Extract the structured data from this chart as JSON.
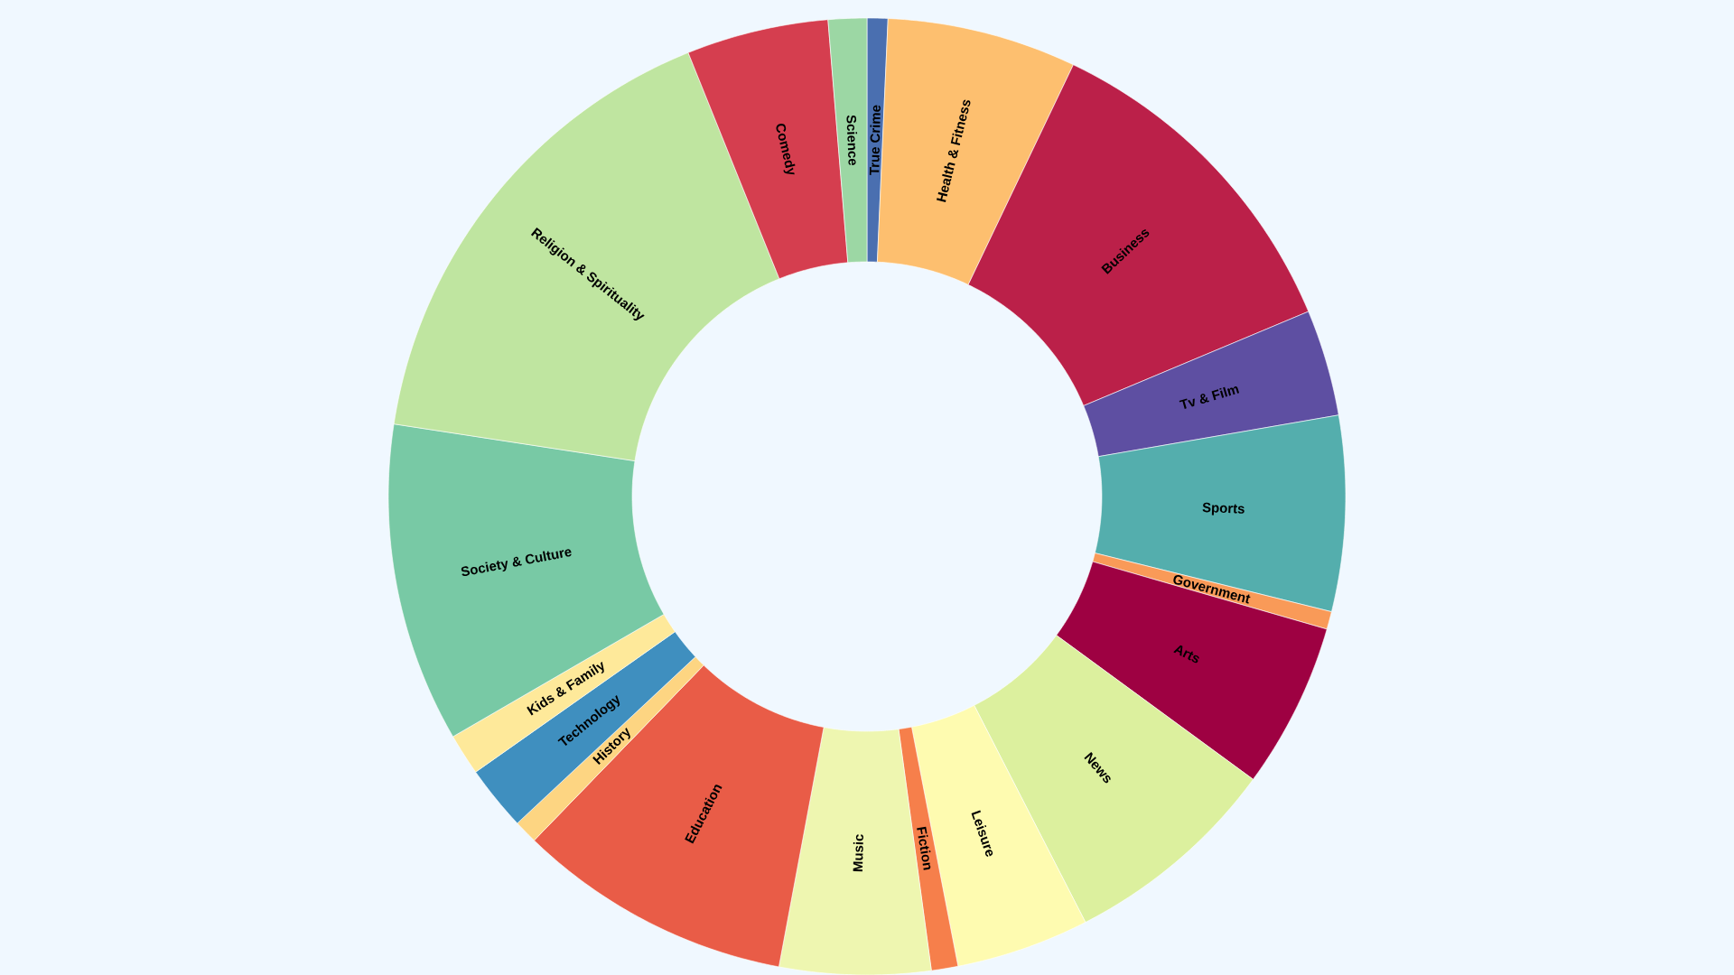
{
  "chart_data": {
    "type": "donut",
    "categories": [
      "True Crime",
      "Health & Fitness",
      "Business",
      "Tv & Film",
      "Sports",
      "Government",
      "Arts",
      "News",
      "Leisure",
      "Fiction",
      "Music",
      "Education",
      "History",
      "Technology",
      "Kids & Family",
      "Society & Culture",
      "Religion & Spirituality",
      "Comedy",
      "Science"
    ],
    "values": [
      0.7,
      6.4,
      11.6,
      3.6,
      6.6,
      0.6,
      5.6,
      7.4,
      4.5,
      0.9,
      5.1,
      9.3,
      0.8,
      2.2,
      1.4,
      10.8,
      16.5,
      4.8,
      1.3
    ],
    "colors": [
      "#4a6fb0",
      "#fdbf6f",
      "#bb2049",
      "#5e4fa2",
      "#54aead",
      "#f99a58",
      "#9e0142",
      "#dcf09e",
      "#fefbb0",
      "#f67f4b",
      "#eef6b0",
      "#e95c47",
      "#fdd582",
      "#3f8fbf",
      "#fee99a",
      "#78c9a5",
      "#bfe5a0",
      "#d53e4f",
      "#9cd7a4"
    ]
  }
}
